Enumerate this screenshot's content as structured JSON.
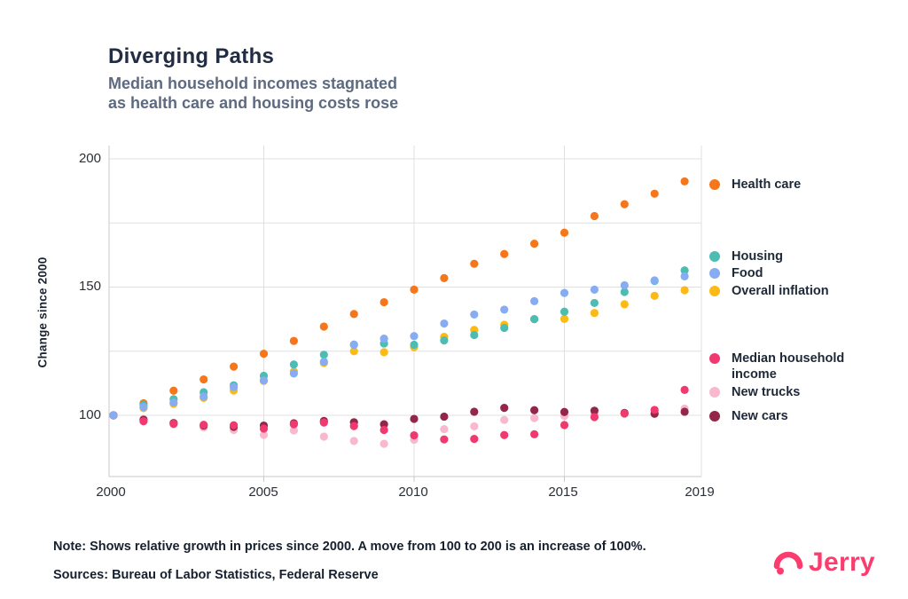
{
  "header": {
    "title": "Diverging Paths",
    "subtitle_line1": "Median household incomes stagnated",
    "subtitle_line2": "as health care and housing costs rose"
  },
  "chart_data": {
    "type": "scatter",
    "title": "Diverging Paths",
    "ylabel": "Change since 2000",
    "xlabel": "",
    "x": [
      2000,
      2001,
      2002,
      2003,
      2004,
      2005,
      2006,
      2007,
      2008,
      2009,
      2010,
      2011,
      2012,
      2013,
      2014,
      2015,
      2016,
      2017,
      2018,
      2019
    ],
    "x_tick_labels": [
      "2000",
      "2005",
      "2010",
      "2015",
      "2019"
    ],
    "y_tick_labels": [
      "200",
      "150",
      "100"
    ],
    "y_gridlines": [
      100,
      125,
      150,
      175,
      200
    ],
    "x_gridlines": [
      2005,
      2010,
      2015
    ],
    "ylim": [
      76,
      205
    ],
    "grid": true,
    "legend_position": "right",
    "series": [
      {
        "name": "Health care",
        "color": "#F6771B",
        "values": [
          100,
          104.7,
          109.6,
          114,
          119,
          124,
          129,
          134.6,
          139.5,
          144.1,
          149,
          153.5,
          159.1,
          162.9,
          166.9,
          171.2,
          177.7,
          182.3,
          186.4,
          191.2
        ]
      },
      {
        "name": "Housing",
        "color": "#4DBDB3",
        "values": [
          100,
          104,
          106.3,
          109,
          111.7,
          115.4,
          119.8,
          123.6,
          127.5,
          128,
          127.5,
          129.2,
          131.3,
          134.1,
          137.5,
          140.4,
          143.8,
          148.1,
          152.4,
          156.5
        ]
      },
      {
        "name": "Food",
        "color": "#87ACF1",
        "values": [
          100,
          103.2,
          105,
          107.3,
          111,
          113.6,
          116.3,
          120.9,
          127.6,
          129.9,
          130.9,
          135.8,
          139.3,
          141.2,
          144.5,
          147.7,
          149,
          150.7,
          152.6,
          154.2
        ]
      },
      {
        "name": "Overall inflation",
        "color": "#FBBA16",
        "values": [
          100,
          102.8,
          104.5,
          106.8,
          109.7,
          113.4,
          117.1,
          120.4,
          125,
          124.6,
          126.6,
          130.6,
          133.3,
          135.3,
          137.5,
          137.6,
          139.9,
          143.3,
          146.6,
          148.8
        ]
      },
      {
        "name": "Median household income",
        "color": "#F0396F",
        "values": [
          100,
          97.7,
          96.7,
          96.3,
          96.1,
          94.8,
          96.5,
          97.2,
          95.8,
          94.3,
          92.2,
          90.6,
          90.8,
          92.3,
          92.6,
          96.2,
          99.3,
          100.7,
          102.1,
          109.9
        ]
      },
      {
        "name": "New trucks",
        "color": "#F8B9CE",
        "values": [
          100,
          98.5,
          96.5,
          95.3,
          94.3,
          92.4,
          94.1,
          91.7,
          90,
          88.9,
          90.5,
          94.6,
          95.7,
          98.2,
          98.9,
          99.8,
          100.4,
          100.9,
          101.3,
          102.6
        ]
      },
      {
        "name": "New cars",
        "color": "#932749",
        "values": [
          100,
          98.3,
          97,
          96,
          95.5,
          96,
          96.9,
          97.8,
          97.3,
          96.5,
          98.6,
          99.5,
          101.4,
          102.9,
          102,
          101.3,
          101.8,
          100.9,
          100.6,
          101.4
        ]
      }
    ],
    "draw_order": [
      0,
      3,
      1,
      5,
      6,
      4,
      2
    ]
  },
  "legend": {
    "items": [
      {
        "label": "Health care",
        "color": "#F6771B"
      },
      {
        "label": "Housing",
        "color": "#4DBDB3"
      },
      {
        "label": "Food",
        "color": "#87ACF1"
      },
      {
        "label": "Overall inflation",
        "color": "#FBBA16"
      },
      {
        "label": "Median household income",
        "color": "#F0396F"
      },
      {
        "label": "New trucks",
        "color": "#F8B9CE"
      },
      {
        "label": "New cars",
        "color": "#932749"
      }
    ]
  },
  "footer": {
    "note": "Note: Shows relative growth in prices since 2000. A move from 100 to 200 is an increase of 100%.",
    "sources": "Sources: Bureau of Labor Statistics, Federal Reserve",
    "brand": "Jerry"
  },
  "colors": {
    "brand_pink": "#FA3D6E",
    "gridline": "#E0E0E0",
    "axis": "#C9C9C9",
    "title_navy": "#222C42",
    "subtitle_gray": "#5E6A80"
  }
}
